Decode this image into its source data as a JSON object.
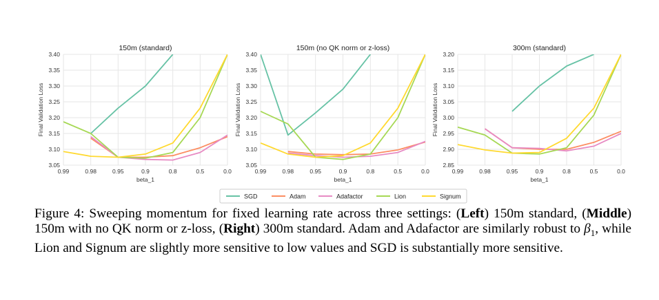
{
  "figure": {
    "x_ticks": [
      "0.99",
      "0.98",
      "0.95",
      "0.9",
      "0.8",
      "0.5",
      "0.0"
    ],
    "xlabel": "beta_1",
    "ylabel": "Final Validation Loss",
    "legend": [
      {
        "name": "SGD",
        "color": "#66c2a5"
      },
      {
        "name": "Adam",
        "color": "#fc8d62"
      },
      {
        "name": "Adafactor",
        "color": "#e78ac3"
      },
      {
        "name": "Lion",
        "color": "#a6d854"
      },
      {
        "name": "Signum",
        "color": "#ffd92f"
      }
    ]
  },
  "chart_data": [
    {
      "type": "line",
      "title": "150m (standard)",
      "xlabel": "beta_1",
      "ylabel": "Final Validation Loss",
      "categories": [
        "0.99",
        "0.98",
        "0.95",
        "0.9",
        "0.8",
        "0.5",
        "0.0"
      ],
      "ylim": [
        3.05,
        3.4
      ],
      "yticks": [
        "3.05",
        "3.10",
        "3.15",
        "3.20",
        "3.25",
        "3.30",
        "3.35",
        "3.40"
      ],
      "grid": true,
      "series": [
        {
          "name": "SGD",
          "color": "#66c2a5",
          "values": [
            null,
            3.15,
            3.23,
            3.3,
            3.4,
            null,
            null
          ]
        },
        {
          "name": "Adam",
          "color": "#fc8d62",
          "values": [
            null,
            3.135,
            3.075,
            3.075,
            3.08,
            3.105,
            3.14
          ]
        },
        {
          "name": "Adafactor",
          "color": "#e78ac3",
          "values": [
            null,
            3.14,
            3.075,
            3.068,
            3.066,
            3.09,
            3.145
          ]
        },
        {
          "name": "Lion",
          "color": "#a6d854",
          "values": [
            3.187,
            3.15,
            3.075,
            3.072,
            3.09,
            3.2,
            3.4
          ]
        },
        {
          "name": "Signum",
          "color": "#ffd92f",
          "values": [
            3.093,
            3.078,
            3.075,
            3.085,
            3.12,
            3.23,
            3.4
          ]
        }
      ]
    },
    {
      "type": "line",
      "title": "150m (no QK norm or z-loss)",
      "xlabel": "beta_1",
      "ylabel": "Final Validation Loss",
      "categories": [
        "0.99",
        "0.98",
        "0.95",
        "0.9",
        "0.8",
        "0.5",
        "0.0"
      ],
      "ylim": [
        3.05,
        3.4
      ],
      "yticks": [
        "3.05",
        "3.10",
        "3.15",
        "3.20",
        "3.25",
        "3.30",
        "3.35",
        "3.40"
      ],
      "grid": true,
      "series": [
        {
          "name": "SGD",
          "color": "#66c2a5",
          "values": [
            3.4,
            3.145,
            3.215,
            3.29,
            3.4,
            null,
            null
          ]
        },
        {
          "name": "Adam",
          "color": "#fc8d62",
          "values": [
            null,
            3.093,
            3.085,
            3.083,
            3.085,
            3.098,
            3.123
          ]
        },
        {
          "name": "Adafactor",
          "color": "#e78ac3",
          "values": [
            null,
            3.088,
            3.08,
            3.075,
            3.078,
            3.09,
            3.125
          ]
        },
        {
          "name": "Lion",
          "color": "#a6d854",
          "values": [
            3.22,
            3.18,
            3.075,
            3.068,
            3.085,
            3.2,
            3.4
          ]
        },
        {
          "name": "Signum",
          "color": "#ffd92f",
          "values": [
            3.12,
            3.085,
            3.075,
            3.08,
            3.12,
            3.23,
            3.4
          ]
        }
      ]
    },
    {
      "type": "line",
      "title": "300m (standard)",
      "xlabel": "beta_1",
      "ylabel": "Final Validation Loss",
      "categories": [
        "0.99",
        "0.98",
        "0.95",
        "0.9",
        "0.8",
        "0.5",
        "0.0"
      ],
      "ylim": [
        2.85,
        3.2
      ],
      "yticks": [
        "2.85",
        "2.90",
        "2.95",
        "3.00",
        "3.05",
        "3.10",
        "3.15",
        "3.20"
      ],
      "grid": true,
      "series": [
        {
          "name": "SGD",
          "color": "#66c2a5",
          "values": [
            null,
            null,
            3.02,
            3.1,
            3.163,
            3.2,
            null
          ]
        },
        {
          "name": "Adam",
          "color": "#fc8d62",
          "values": [
            null,
            2.965,
            2.905,
            2.9,
            2.9,
            2.922,
            2.957
          ]
        },
        {
          "name": "Adafactor",
          "color": "#e78ac3",
          "values": [
            null,
            2.965,
            2.905,
            2.903,
            2.895,
            2.91,
            2.95
          ]
        },
        {
          "name": "Lion",
          "color": "#a6d854",
          "values": [
            2.97,
            2.945,
            2.888,
            2.885,
            2.905,
            3.008,
            3.2
          ]
        },
        {
          "name": "Signum",
          "color": "#ffd92f",
          "values": [
            2.915,
            2.898,
            2.888,
            2.89,
            2.935,
            3.03,
            3.2
          ]
        }
      ]
    }
  ],
  "caption": {
    "p1": "Figure 4: Sweeping momentum for fixed learning rate across three settings: (",
    "left": "Left",
    "p2": ") 150m standard, (",
    "middle": "Middle",
    "p3": ") 150m with no QK norm or z-loss, (",
    "right": "Right",
    "p4": ") 300m standard.  Adam and Adafactor are similarly robust to ",
    "beta": "β",
    "beta_sub": "1",
    "p5": ", while Lion and Signum are slightly more sensitive to low values and SGD is substantially more sensitive."
  }
}
